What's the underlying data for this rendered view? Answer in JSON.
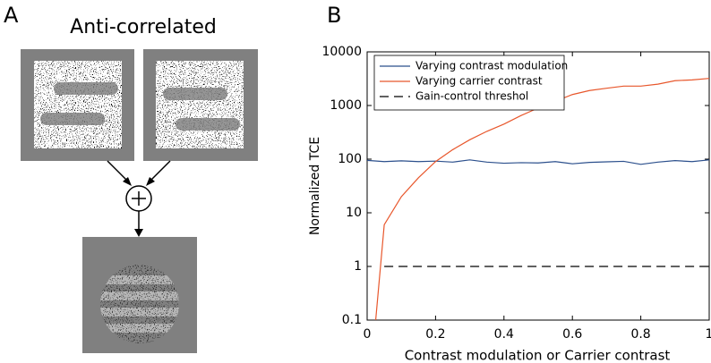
{
  "panel_labels": [
    "A",
    "B"
  ],
  "diagram_title": "Anti-correlated",
  "chart_data": {
    "type": "line",
    "xlabel": "Contrast modulation or Carrier contrast",
    "ylabel": "Normalized  TCE",
    "xlim": [
      0,
      1
    ],
    "xticks": [
      0,
      0.2,
      0.4,
      0.6,
      0.8,
      1
    ],
    "ylim": [
      0.1,
      10000
    ],
    "yticks": [
      0.1,
      1,
      10,
      100,
      1000,
      10000
    ],
    "log_y": true,
    "legend": "upper left",
    "series": [
      {
        "name": "Varying contrast modulation",
        "color": "#2b4f8c",
        "dash": false,
        "x": [
          0,
          0.05,
          0.1,
          0.15,
          0.2,
          0.25,
          0.3,
          0.35,
          0.4,
          0.45,
          0.5,
          0.55,
          0.6,
          0.65,
          0.7,
          0.75,
          0.8,
          0.85,
          0.9,
          0.95,
          1
        ],
        "values": [
          95,
          90,
          93,
          90,
          92,
          88,
          97,
          88,
          84,
          86,
          85,
          90,
          82,
          87,
          89,
          91,
          80,
          88,
          94,
          90,
          97
        ]
      },
      {
        "name": "Varying carrier contrast",
        "color": "#e8572c",
        "dash": false,
        "x": [
          0.025,
          0.05,
          0.1,
          0.15,
          0.2,
          0.25,
          0.3,
          0.35,
          0.4,
          0.45,
          0.5,
          0.55,
          0.6,
          0.65,
          0.7,
          0.75,
          0.8,
          0.85,
          0.9,
          0.95,
          1
        ],
        "values": [
          0.1,
          6,
          20,
          45,
          90,
          150,
          230,
          330,
          450,
          650,
          900,
          1200,
          1600,
          1900,
          2100,
          2300,
          2300,
          2500,
          2900,
          3000,
          3200
        ]
      },
      {
        "name": "Gain-control threshol",
        "color": "#000000",
        "dash": true,
        "x": [
          0.05,
          1
        ],
        "values": [
          1,
          1
        ]
      }
    ]
  }
}
